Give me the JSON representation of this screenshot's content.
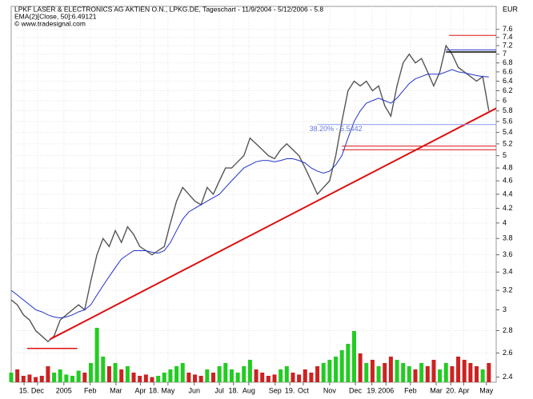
{
  "chart_data": {
    "type": "line",
    "title": "LPKF LASER & ELECTRONICS AG AKTIEN O.N., LPKG.DE, Tageschart - 11/9/2004 - 5/12/2006 - 5.8",
    "subtitle": "EMA(2)[Close, 50]:6.49121",
    "source": "© www.tradesignal.com",
    "y_axis_label": "EUR",
    "annotation": "38.20% - 5.5442",
    "log_scale": true,
    "grid": true,
    "x": [
      0,
      1,
      2,
      3,
      4,
      5,
      6,
      7,
      8,
      9,
      10,
      11,
      12,
      13,
      14,
      15,
      16,
      17,
      18,
      19,
      20,
      21,
      22,
      23,
      24,
      25,
      26,
      27,
      28,
      29,
      30,
      31,
      32,
      33,
      34,
      35,
      36,
      37,
      38,
      39,
      40,
      41,
      42,
      43,
      44,
      45,
      46,
      47,
      48,
      49,
      50,
      51,
      52,
      53,
      54,
      55,
      56,
      57,
      58,
      59,
      60,
      61,
      62,
      63,
      64,
      65,
      66,
      67,
      68,
      69,
      70,
      71,
      72,
      73,
      74,
      75,
      76,
      77,
      78
    ],
    "xlim": [
      0,
      79.2
    ],
    "xticks": [
      {
        "value": 2.1,
        "label": "15."
      },
      {
        "value": 4.3,
        "label": "Dec"
      },
      {
        "value": 8.6,
        "label": "2005"
      },
      {
        "value": 12.9,
        "label": "Feb"
      },
      {
        "value": 17.1,
        "label": "Mar"
      },
      {
        "value": 21.1,
        "label": "Apr"
      },
      {
        "value": 23.3,
        "label": "18."
      },
      {
        "value": 25.6,
        "label": "May"
      },
      {
        "value": 29.9,
        "label": "Jun"
      },
      {
        "value": 34,
        "label": "Jul"
      },
      {
        "value": 36.3,
        "label": "18."
      },
      {
        "value": 38.8,
        "label": "Aug"
      },
      {
        "value": 43.1,
        "label": "Sep"
      },
      {
        "value": 45.5,
        "label": "19."
      },
      {
        "value": 47.7,
        "label": "Oct"
      },
      {
        "value": 52,
        "label": "Nov"
      },
      {
        "value": 56.2,
        "label": "Dec"
      },
      {
        "value": 58.9,
        "label": "19."
      },
      {
        "value": 61.2,
        "label": "2006"
      },
      {
        "value": 65.2,
        "label": "Feb"
      },
      {
        "value": 69.4,
        "label": "Mar"
      },
      {
        "value": 71.8,
        "label": "20."
      },
      {
        "value": 73.9,
        "label": "Apr"
      },
      {
        "value": 77.6,
        "label": "May"
      }
    ],
    "ylim": [
      2.36,
      8.2
    ],
    "yticks": [
      2.4,
      2.6,
      2.8,
      3,
      3.2,
      3.4,
      3.6,
      3.8,
      4,
      4.2,
      4.4,
      4.6,
      4.8,
      5,
      5.2,
      5.4,
      5.6,
      5.8,
      6,
      6.2,
      6.4,
      6.6,
      6.8,
      7,
      7.2,
      7.4,
      7.6
    ],
    "series": [
      {
        "name": "LPKG.DE",
        "color": "#555555",
        "values": [
          3.1,
          3.05,
          2.95,
          2.9,
          2.8,
          2.75,
          2.7,
          2.75,
          2.9,
          2.95,
          3.0,
          3.05,
          3.0,
          3.3,
          3.6,
          3.8,
          3.7,
          3.9,
          3.75,
          3.95,
          3.85,
          3.7,
          3.65,
          3.6,
          3.65,
          3.7,
          4.0,
          4.3,
          4.5,
          4.4,
          4.3,
          4.25,
          4.5,
          4.4,
          4.6,
          4.8,
          4.8,
          4.9,
          5.0,
          5.3,
          5.2,
          5.1,
          5.0,
          4.95,
          5.1,
          5.2,
          5.1,
          5.0,
          4.8,
          4.6,
          4.4,
          4.5,
          4.6,
          5.0,
          5.6,
          6.2,
          6.4,
          6.3,
          6.4,
          6.2,
          6.3,
          5.9,
          5.7,
          6.3,
          6.8,
          7.0,
          6.8,
          6.9,
          6.6,
          6.3,
          6.6,
          7.2,
          7.0,
          6.7,
          6.6,
          6.5,
          6.4,
          6.5,
          5.8
        ]
      },
      {
        "name": "EMA",
        "color": "#2233cc",
        "values": [
          3.2,
          3.15,
          3.1,
          3.05,
          3.0,
          2.98,
          2.95,
          2.93,
          2.92,
          2.93,
          2.95,
          2.98,
          3.0,
          3.05,
          3.15,
          3.25,
          3.35,
          3.45,
          3.55,
          3.6,
          3.65,
          3.65,
          3.65,
          3.63,
          3.62,
          3.65,
          3.75,
          3.9,
          4.05,
          4.15,
          4.2,
          4.25,
          4.3,
          4.35,
          4.4,
          4.5,
          4.6,
          4.7,
          4.8,
          4.85,
          4.9,
          4.92,
          4.92,
          4.9,
          4.92,
          4.95,
          4.95,
          4.92,
          4.88,
          4.8,
          4.75,
          4.72,
          4.75,
          4.85,
          5.0,
          5.3,
          5.6,
          5.8,
          5.95,
          6.0,
          6.05,
          6.0,
          5.95,
          6.05,
          6.2,
          6.35,
          6.45,
          6.5,
          6.55,
          6.55,
          6.55,
          6.6,
          6.65,
          6.6,
          6.58,
          6.55,
          6.52,
          6.5,
          6.49
        ]
      }
    ],
    "volume": {
      "lim": [
        0,
        100
      ],
      "up_color": "#22cc22",
      "down_color": "#cc2222",
      "values": [
        15,
        20,
        10,
        12,
        8,
        10,
        25,
        15,
        20,
        12,
        10,
        18,
        15,
        30,
        85,
        40,
        25,
        30,
        20,
        25,
        15,
        10,
        12,
        8,
        10,
        15,
        20,
        25,
        30,
        15,
        12,
        10,
        20,
        15,
        25,
        30,
        20,
        15,
        25,
        35,
        20,
        15,
        10,
        12,
        20,
        25,
        15,
        12,
        20,
        15,
        25,
        30,
        35,
        40,
        50,
        60,
        80,
        45,
        30,
        35,
        25,
        30,
        40,
        35,
        30,
        25,
        20,
        30,
        25,
        35,
        20,
        30,
        25,
        40,
        35,
        30,
        25,
        20,
        30
      ]
    },
    "lines": [
      {
        "x": [
          6.3,
          79.2
        ],
        "y": [
          2.72,
          5.85
        ],
        "color": "#dd1111",
        "width": 2
      },
      {
        "x": [
          2.6,
          10.8
        ],
        "y": [
          2.64,
          2.64
        ],
        "color": "#dd1111",
        "width": 1.5
      },
      {
        "x": [
          54,
          79.2
        ],
        "y": [
          5.1,
          5.1
        ],
        "color": "#dd1111",
        "width": 1
      },
      {
        "x": [
          54,
          79.2
        ],
        "y": [
          5.16,
          5.16
        ],
        "color": "#dd1111",
        "width": 1
      },
      {
        "x": [
          50,
          79.2
        ],
        "y": [
          5.5442,
          5.5442
        ],
        "color": "#8899ee",
        "width": 1
      },
      {
        "x": [
          71.5,
          79.2
        ],
        "y": [
          7.45,
          7.45
        ],
        "color": "#dd1111",
        "width": 1
      },
      {
        "x": [
          71,
          79.2
        ],
        "y": [
          7.05,
          7.05
        ],
        "color": "#000000",
        "width": 1.5
      },
      {
        "x": [
          71,
          79.2
        ],
        "y": [
          7.1,
          7.1
        ],
        "color": "#2233cc",
        "width": 1
      }
    ]
  }
}
